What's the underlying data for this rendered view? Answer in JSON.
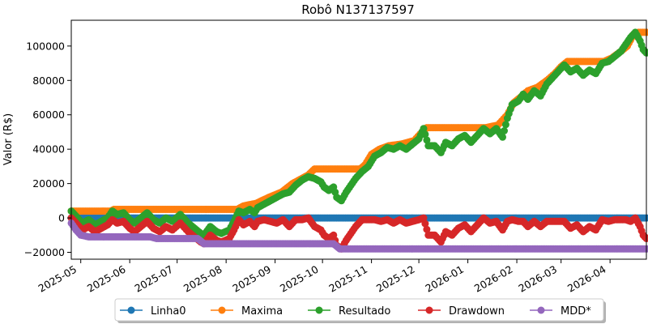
{
  "chart_data": {
    "type": "line",
    "title": "Robô N137137597",
    "xlabel": "",
    "ylabel": "Valor (R$)",
    "x_range": [
      "2025-04-25",
      "2026-04-24"
    ],
    "ylim": [
      -24000,
      115000
    ],
    "x_ticks": [
      "2025-05",
      "2025-06",
      "2025-07",
      "2025-08",
      "2025-09",
      "2025-10",
      "2025-11",
      "2025-12",
      "2026-01",
      "2026-02",
      "2026-03",
      "2026-04"
    ],
    "y_ticks": [
      -20000,
      0,
      20000,
      40000,
      60000,
      80000,
      100000
    ],
    "y_tick_labels": [
      "−20000",
      "0",
      "20000",
      "40000",
      "60000",
      "80000",
      "100000"
    ],
    "grid": false,
    "legend_position": "bottom-center",
    "series": [
      {
        "name": "Linha0",
        "color": "#1f77b4",
        "points": [
          [
            "2025-04-25",
            0
          ],
          [
            "2026-04-24",
            0
          ]
        ]
      },
      {
        "name": "Maxima",
        "color": "#ff7f0e",
        "points": [
          [
            "2025-04-25",
            4000
          ],
          [
            "2025-05-20",
            4000
          ],
          [
            "2025-05-22",
            5000
          ],
          [
            "2025-08-08",
            5000
          ],
          [
            "2025-08-12",
            7000
          ],
          [
            "2025-08-20",
            8500
          ],
          [
            "2025-08-28",
            12000
          ],
          [
            "2025-09-05",
            15000
          ],
          [
            "2025-09-12",
            20000
          ],
          [
            "2025-09-18",
            23000
          ],
          [
            "2025-09-22",
            25000
          ],
          [
            "2025-09-26",
            28500
          ],
          [
            "2025-10-25",
            28500
          ],
          [
            "2025-10-28",
            31000
          ],
          [
            "2025-11-01",
            37000
          ],
          [
            "2025-11-06",
            40000
          ],
          [
            "2025-11-12",
            42000
          ],
          [
            "2025-11-20",
            43000
          ],
          [
            "2025-11-28",
            45000
          ],
          [
            "2025-12-03",
            50000
          ],
          [
            "2025-12-06",
            52500
          ],
          [
            "2026-01-12",
            52500
          ],
          [
            "2026-01-20",
            54000
          ],
          [
            "2026-01-26",
            60000
          ],
          [
            "2026-01-30",
            67000
          ],
          [
            "2026-02-03",
            70000
          ],
          [
            "2026-02-08",
            74000
          ],
          [
            "2026-02-14",
            76000
          ],
          [
            "2026-02-20",
            80000
          ],
          [
            "2026-02-25",
            84000
          ],
          [
            "2026-03-01",
            88000
          ],
          [
            "2026-03-05",
            91000
          ],
          [
            "2026-03-28",
            91000
          ],
          [
            "2026-04-02",
            93000
          ],
          [
            "2026-04-08",
            97000
          ],
          [
            "2026-04-12",
            100000
          ],
          [
            "2026-04-16",
            107000
          ],
          [
            "2026-04-19",
            108000
          ],
          [
            "2026-04-24",
            108000
          ]
        ]
      },
      {
        "name": "Resultado",
        "color": "#2ca02c",
        "points": [
          [
            "2025-04-25",
            4000
          ],
          [
            "2025-04-28",
            1000
          ],
          [
            "2025-05-02",
            -3000
          ],
          [
            "2025-05-06",
            -1000
          ],
          [
            "2025-05-10",
            -4000
          ],
          [
            "2025-05-14",
            -2000
          ],
          [
            "2025-05-18",
            0
          ],
          [
            "2025-05-21",
            4000
          ],
          [
            "2025-05-24",
            2000
          ],
          [
            "2025-05-28",
            3000
          ],
          [
            "2025-06-01",
            -1000
          ],
          [
            "2025-06-04",
            -3000
          ],
          [
            "2025-06-08",
            0
          ],
          [
            "2025-06-12",
            3000
          ],
          [
            "2025-06-16",
            -1000
          ],
          [
            "2025-06-20",
            -3000
          ],
          [
            "2025-06-24",
            0
          ],
          [
            "2025-06-28",
            -2000
          ],
          [
            "2025-07-03",
            2000
          ],
          [
            "2025-07-08",
            -3000
          ],
          [
            "2025-07-12",
            -6000
          ],
          [
            "2025-07-16",
            -9000
          ],
          [
            "2025-07-18",
            -10000
          ],
          [
            "2025-07-22",
            -5000
          ],
          [
            "2025-07-26",
            -8000
          ],
          [
            "2025-07-29",
            -9000
          ],
          [
            "2025-08-03",
            -7000
          ],
          [
            "2025-08-06",
            -2000
          ],
          [
            "2025-08-09",
            4000
          ],
          [
            "2025-08-12",
            3000
          ],
          [
            "2025-08-16",
            5000
          ],
          [
            "2025-08-19",
            3000
          ],
          [
            "2025-08-21",
            6000
          ],
          [
            "2025-08-25",
            8000
          ],
          [
            "2025-08-29",
            10000
          ],
          [
            "2025-09-02",
            12000
          ],
          [
            "2025-09-06",
            14000
          ],
          [
            "2025-09-10",
            15000
          ],
          [
            "2025-09-14",
            19000
          ],
          [
            "2025-09-18",
            22000
          ],
          [
            "2025-09-22",
            24000
          ],
          [
            "2025-09-26",
            23000
          ],
          [
            "2025-09-30",
            21000
          ],
          [
            "2025-10-02",
            18000
          ],
          [
            "2025-10-05",
            16000
          ],
          [
            "2025-10-08",
            18000
          ],
          [
            "2025-10-10",
            12000
          ],
          [
            "2025-10-13",
            10000
          ],
          [
            "2025-10-16",
            15000
          ],
          [
            "2025-10-19",
            19000
          ],
          [
            "2025-10-22",
            23000
          ],
          [
            "2025-10-26",
            27000
          ],
          [
            "2025-10-30",
            30000
          ],
          [
            "2025-11-03",
            36000
          ],
          [
            "2025-11-07",
            38000
          ],
          [
            "2025-11-11",
            41000
          ],
          [
            "2025-11-15",
            40000
          ],
          [
            "2025-11-19",
            42000
          ],
          [
            "2025-11-23",
            40000
          ],
          [
            "2025-11-27",
            43000
          ],
          [
            "2025-12-01",
            46000
          ],
          [
            "2025-12-04",
            52000
          ],
          [
            "2025-12-07",
            42000
          ],
          [
            "2025-12-11",
            42000
          ],
          [
            "2025-12-15",
            38000
          ],
          [
            "2025-12-18",
            44000
          ],
          [
            "2025-12-22",
            42000
          ],
          [
            "2025-12-26",
            46000
          ],
          [
            "2025-12-30",
            48000
          ],
          [
            "2026-01-03",
            44000
          ],
          [
            "2026-01-07",
            48000
          ],
          [
            "2026-01-11",
            52000
          ],
          [
            "2026-01-15",
            49000
          ],
          [
            "2026-01-19",
            52000
          ],
          [
            "2026-01-23",
            47000
          ],
          [
            "2026-01-26",
            58000
          ],
          [
            "2026-01-29",
            66000
          ],
          [
            "2026-02-02",
            68000
          ],
          [
            "2026-02-05",
            72000
          ],
          [
            "2026-02-08",
            69000
          ],
          [
            "2026-02-12",
            74000
          ],
          [
            "2026-02-16",
            71000
          ],
          [
            "2026-02-20",
            78000
          ],
          [
            "2026-02-24",
            82000
          ],
          [
            "2026-02-28",
            86000
          ],
          [
            "2026-03-03",
            89000
          ],
          [
            "2026-03-07",
            85000
          ],
          [
            "2026-03-11",
            87000
          ],
          [
            "2026-03-15",
            83000
          ],
          [
            "2026-03-19",
            86000
          ],
          [
            "2026-03-23",
            84000
          ],
          [
            "2026-03-27",
            90000
          ],
          [
            "2026-03-31",
            91000
          ],
          [
            "2026-04-04",
            94000
          ],
          [
            "2026-04-08",
            97000
          ],
          [
            "2026-04-11",
            101000
          ],
          [
            "2026-04-14",
            105000
          ],
          [
            "2026-04-17",
            108000
          ],
          [
            "2026-04-20",
            103000
          ],
          [
            "2026-04-22",
            98000
          ],
          [
            "2026-04-24",
            96000
          ]
        ]
      },
      {
        "name": "Drawdown",
        "color": "#d62728",
        "points": [
          [
            "2025-04-25",
            0
          ],
          [
            "2025-04-28",
            -3000
          ],
          [
            "2025-05-02",
            -7000
          ],
          [
            "2025-05-06",
            -5000
          ],
          [
            "2025-05-10",
            -8000
          ],
          [
            "2025-05-14",
            -6000
          ],
          [
            "2025-05-18",
            -4000
          ],
          [
            "2025-05-21",
            -1000
          ],
          [
            "2025-05-24",
            -3000
          ],
          [
            "2025-05-28",
            -2000
          ],
          [
            "2025-06-01",
            -6000
          ],
          [
            "2025-06-04",
            -8000
          ],
          [
            "2025-06-08",
            -5000
          ],
          [
            "2025-06-12",
            -2000
          ],
          [
            "2025-06-16",
            -6000
          ],
          [
            "2025-06-20",
            -8000
          ],
          [
            "2025-06-24",
            -5000
          ],
          [
            "2025-06-28",
            -7000
          ],
          [
            "2025-07-03",
            -3000
          ],
          [
            "2025-07-08",
            -8000
          ],
          [
            "2025-07-12",
            -11000
          ],
          [
            "2025-07-16",
            -14000
          ],
          [
            "2025-07-18",
            -15000
          ],
          [
            "2025-07-22",
            -10000
          ],
          [
            "2025-07-26",
            -13000
          ],
          [
            "2025-07-29",
            -14000
          ],
          [
            "2025-08-03",
            -12000
          ],
          [
            "2025-08-06",
            -7000
          ],
          [
            "2025-08-09",
            -1000
          ],
          [
            "2025-08-12",
            -4000
          ],
          [
            "2025-08-16",
            -2000
          ],
          [
            "2025-08-19",
            -5000
          ],
          [
            "2025-08-21",
            -2000
          ],
          [
            "2025-08-25",
            -1000
          ],
          [
            "2025-08-29",
            -2000
          ],
          [
            "2025-09-02",
            -3000
          ],
          [
            "2025-09-06",
            -1000
          ],
          [
            "2025-09-10",
            -5000
          ],
          [
            "2025-09-14",
            -1000
          ],
          [
            "2025-09-18",
            -1000
          ],
          [
            "2025-09-22",
            0
          ],
          [
            "2025-09-26",
            -5000
          ],
          [
            "2025-09-30",
            -7000
          ],
          [
            "2025-10-02",
            -10000
          ],
          [
            "2025-10-05",
            -12000
          ],
          [
            "2025-10-08",
            -10000
          ],
          [
            "2025-10-10",
            -16000
          ],
          [
            "2025-10-13",
            -18000
          ],
          [
            "2025-10-16",
            -13000
          ],
          [
            "2025-10-19",
            -9000
          ],
          [
            "2025-10-22",
            -5000
          ],
          [
            "2025-10-26",
            -1000
          ],
          [
            "2025-10-30",
            -1000
          ],
          [
            "2025-11-03",
            -1000
          ],
          [
            "2025-11-07",
            -2000
          ],
          [
            "2025-11-11",
            -1000
          ],
          [
            "2025-11-15",
            -3000
          ],
          [
            "2025-11-19",
            -1000
          ],
          [
            "2025-11-23",
            -3000
          ],
          [
            "2025-11-27",
            -2000
          ],
          [
            "2025-12-01",
            -1000
          ],
          [
            "2025-12-04",
            0
          ],
          [
            "2025-12-07",
            -10000
          ],
          [
            "2025-12-11",
            -10000
          ],
          [
            "2025-12-15",
            -14000
          ],
          [
            "2025-12-18",
            -8000
          ],
          [
            "2025-12-22",
            -10000
          ],
          [
            "2025-12-26",
            -6000
          ],
          [
            "2025-12-30",
            -4000
          ],
          [
            "2026-01-03",
            -8000
          ],
          [
            "2026-01-07",
            -4000
          ],
          [
            "2026-01-11",
            0
          ],
          [
            "2026-01-15",
            -3000
          ],
          [
            "2026-01-19",
            -2000
          ],
          [
            "2026-01-23",
            -7000
          ],
          [
            "2026-01-26",
            -2000
          ],
          [
            "2026-01-29",
            -1000
          ],
          [
            "2026-02-02",
            -2000
          ],
          [
            "2026-02-05",
            -2000
          ],
          [
            "2026-02-08",
            -5000
          ],
          [
            "2026-02-12",
            -2000
          ],
          [
            "2026-02-16",
            -5000
          ],
          [
            "2026-02-20",
            -2000
          ],
          [
            "2026-02-24",
            -2000
          ],
          [
            "2026-02-28",
            -2000
          ],
          [
            "2026-03-03",
            -2000
          ],
          [
            "2026-03-07",
            -6000
          ],
          [
            "2026-03-11",
            -4000
          ],
          [
            "2026-03-15",
            -8000
          ],
          [
            "2026-03-19",
            -5000
          ],
          [
            "2026-03-23",
            -7000
          ],
          [
            "2026-03-27",
            -1000
          ],
          [
            "2026-03-31",
            -2000
          ],
          [
            "2026-04-04",
            -1000
          ],
          [
            "2026-04-08",
            -1000
          ],
          [
            "2026-04-11",
            -1000
          ],
          [
            "2026-04-14",
            -2000
          ],
          [
            "2026-04-17",
            0
          ],
          [
            "2026-04-20",
            -5000
          ],
          [
            "2026-04-22",
            -10000
          ],
          [
            "2026-04-24",
            -12000
          ]
        ]
      },
      {
        "name": "MDD*",
        "color": "#9467bd",
        "points": [
          [
            "2025-04-25",
            -3000
          ],
          [
            "2025-04-28",
            -7000
          ],
          [
            "2025-05-01",
            -10000
          ],
          [
            "2025-05-06",
            -11000
          ],
          [
            "2025-06-14",
            -11000
          ],
          [
            "2025-06-18",
            -12000
          ],
          [
            "2025-07-14",
            -12000
          ],
          [
            "2025-07-18",
            -15000
          ],
          [
            "2025-10-08",
            -15000
          ],
          [
            "2025-10-12",
            -18000
          ],
          [
            "2026-04-24",
            -18000
          ]
        ]
      }
    ]
  }
}
